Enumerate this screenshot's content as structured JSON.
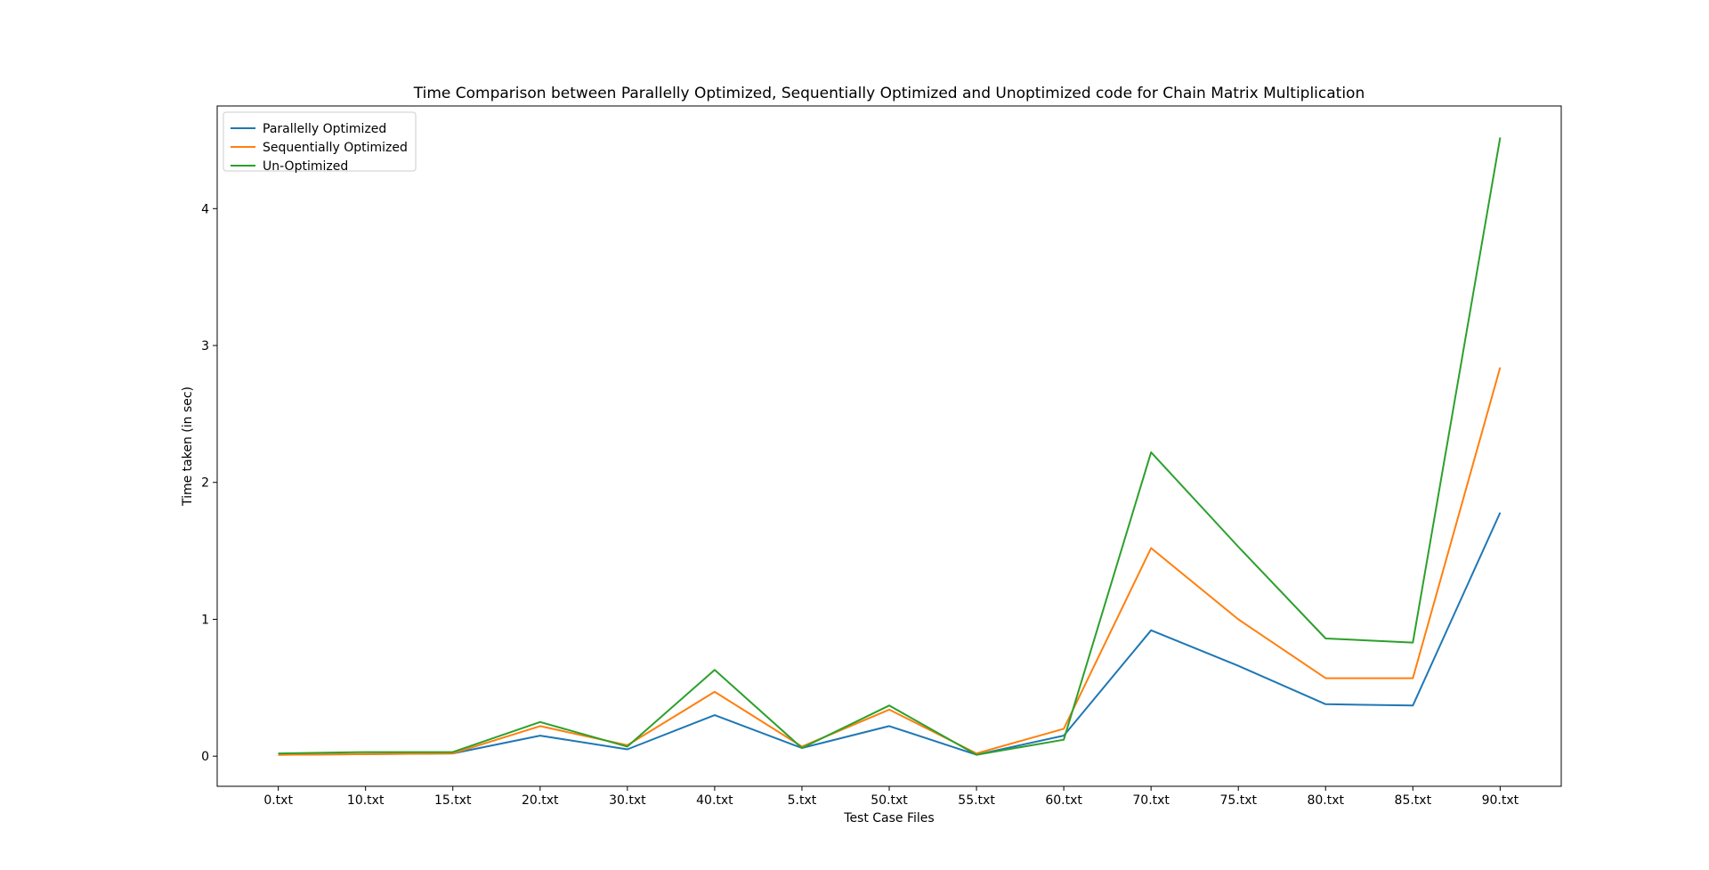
{
  "chart_data": {
    "type": "line",
    "title": "Time Comparison between Parallelly Optimized, Sequentially Optimized and Unoptimized code for Chain Matrix Multiplication",
    "xlabel": "Test Case Files",
    "ylabel": "Time taken (in sec)",
    "categories": [
      "0.txt",
      "10.txt",
      "15.txt",
      "20.txt",
      "30.txt",
      "40.txt",
      "5.txt",
      "50.txt",
      "55.txt",
      "60.txt",
      "70.txt",
      "75.txt",
      "80.txt",
      "85.txt",
      "90.txt"
    ],
    "ylim": [
      -0.22,
      4.75
    ],
    "yticks": [
      0,
      1,
      2,
      3,
      4
    ],
    "legend_position": "upper-left",
    "grid": false,
    "series": [
      {
        "name": "Parallelly Optimized",
        "color": "#1f77b4",
        "values": [
          0.01,
          0.015,
          0.02,
          0.15,
          0.05,
          0.3,
          0.06,
          0.22,
          0.01,
          0.15,
          0.92,
          0.66,
          0.38,
          0.37,
          1.78
        ]
      },
      {
        "name": "Sequentially Optimized",
        "color": "#ff7f0e",
        "values": [
          0.01,
          0.015,
          0.02,
          0.22,
          0.08,
          0.47,
          0.07,
          0.34,
          0.02,
          0.2,
          1.52,
          1.0,
          0.57,
          0.57,
          2.84
        ]
      },
      {
        "name": "Un-Optimized",
        "color": "#2ca02c",
        "values": [
          0.02,
          0.03,
          0.03,
          0.25,
          0.07,
          0.63,
          0.06,
          0.37,
          0.01,
          0.12,
          2.22,
          1.53,
          0.86,
          0.83,
          4.52
        ]
      }
    ]
  }
}
